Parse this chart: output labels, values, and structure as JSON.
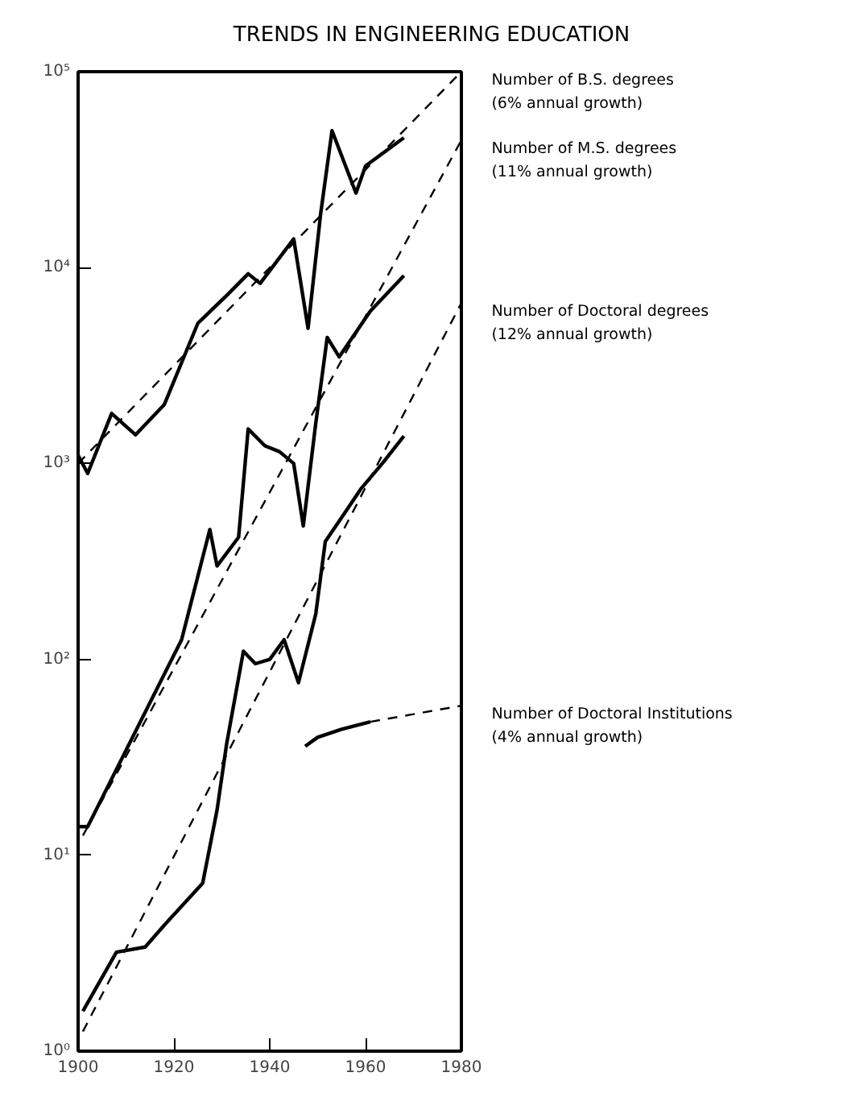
{
  "chart_data": {
    "type": "line",
    "title": "TRENDS IN ENGINEERING EDUCATION",
    "log": true,
    "grid": false,
    "marker": "none",
    "xlim": [
      1900,
      1980
    ],
    "xticks": [
      1900,
      1920,
      1940,
      1960,
      1980
    ],
    "ylim": [
      1,
      100000
    ],
    "yticks": [
      {
        "value": 1,
        "label": "10⁰"
      },
      {
        "value": 10,
        "label": "10¹"
      },
      {
        "value": 100,
        "label": "10²"
      },
      {
        "value": 1000,
        "label": "10³"
      },
      {
        "value": 10000,
        "label": "10⁴"
      },
      {
        "value": 100000,
        "label": "10⁵"
      }
    ],
    "series": [
      {
        "name": "Number of B.S. degrees\n(6% annual growth)",
        "color": "#000000",
        "line_style": "solid",
        "x": [
          1900,
          1902,
          1907,
          1912,
          1918,
          1925,
          1931,
          1935.5,
          1938,
          1945,
          1948,
          1950.6,
          1953,
          1958,
          1960,
          1968
        ],
        "values": [
          1100,
          890,
          1800,
          1400,
          2000,
          5200,
          7200,
          9300,
          8300,
          14000,
          4900,
          18600,
          50000,
          24000,
          33000,
          46000
        ]
      },
      {
        "color": "#000000",
        "line_style": "dashed",
        "x": [
          1900,
          1980
        ],
        "values": [
          1000,
          100000
        ]
      },
      {
        "name": "Number of M.S. degrees\n(11% annual growth)",
        "color": "#000000",
        "line_style": "solid",
        "x": [
          1900,
          1902,
          1921.6,
          1927.5,
          1929,
          1933.5,
          1935.5,
          1939,
          1942,
          1945,
          1947,
          1949.6,
          1952,
          1954.5,
          1961,
          1968
        ],
        "values": [
          14,
          14,
          126,
          460,
          300,
          420,
          1500,
          1230,
          1150,
          1000,
          480,
          1600,
          4400,
          3500,
          6000,
          9100
        ]
      },
      {
        "color": "#000000",
        "line_style": "dashed",
        "x": [
          1901,
          1980
        ],
        "values": [
          12.6,
          44700
        ]
      },
      {
        "name": "Number of Doctoral degrees\n(12% annual growth)",
        "color": "#000000",
        "line_style": "solid",
        "x": [
          1901,
          1908,
          1914,
          1918,
          1926,
          1929,
          1931,
          1934.5,
          1937,
          1940,
          1943,
          1946,
          1949.6,
          1951.6,
          1956,
          1959,
          1963.5,
          1968
        ],
        "values": [
          1.6,
          3.2,
          3.4,
          4.4,
          7.2,
          17,
          37,
          110,
          95,
          100,
          126,
          76,
          170,
          400,
          575,
          740,
          1000,
          1380
        ]
      },
      {
        "color": "#000000",
        "line_style": "dashed",
        "x": [
          1901,
          1980
        ],
        "values": [
          1.26,
          6600
        ]
      },
      {
        "name": "Number of Doctoral Institutions\n(4% annual growth)",
        "color": "#000000",
        "line_style": "solid",
        "x": [
          1947.4,
          1950,
          1955,
          1961
        ],
        "values": [
          36,
          40,
          44,
          48
        ]
      },
      {
        "color": "#000000",
        "line_style": "dashed",
        "x": [
          1961,
          1980
        ],
        "values": [
          48,
          58
        ]
      }
    ]
  }
}
